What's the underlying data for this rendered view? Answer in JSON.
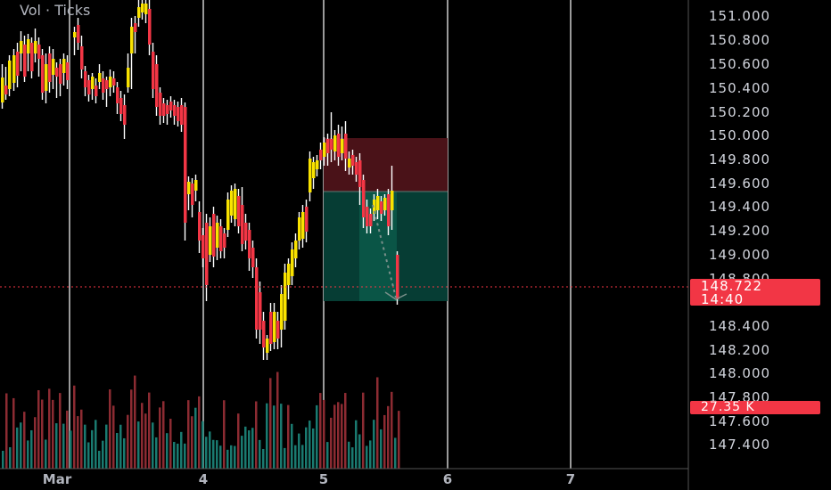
{
  "indicator": {
    "label": "Vol · Ticks"
  },
  "axis": {
    "y_ticks": [
      "151.000",
      "150.800",
      "150.600",
      "150.400",
      "150.200",
      "150.000",
      "149.800",
      "149.600",
      "149.400",
      "149.200",
      "149.000",
      "148.800",
      "148.400",
      "148.200",
      "148.000",
      "147.800",
      "147.600",
      "147.400"
    ],
    "x_ticks": [
      "Mar",
      "4",
      "5",
      "6",
      "7"
    ]
  },
  "current_price": {
    "value": "148.722",
    "countdown": "14:40"
  },
  "volume_badge": {
    "value": "27.35 K"
  },
  "colors": {
    "up": "#f9e200",
    "down": "#f23645",
    "vol_up": "#1a7a70",
    "vol_down": "#8c2b32",
    "grid": "#9a9a9a",
    "stop_zone": "#4a1218",
    "target_zone": "#063d34"
  },
  "chart_data": {
    "type": "candlestick",
    "y_range": [
      147.3,
      151.05
    ],
    "x_range_days": [
      "Mar 1",
      "Mar 7"
    ],
    "session_markers": [
      "Mar",
      "4",
      "5",
      "6",
      "7"
    ],
    "last_price": 148.722,
    "position": {
      "entry": 149.55,
      "stop": 150.0,
      "target": 148.58
    },
    "volume_last": "27.35 K"
  }
}
